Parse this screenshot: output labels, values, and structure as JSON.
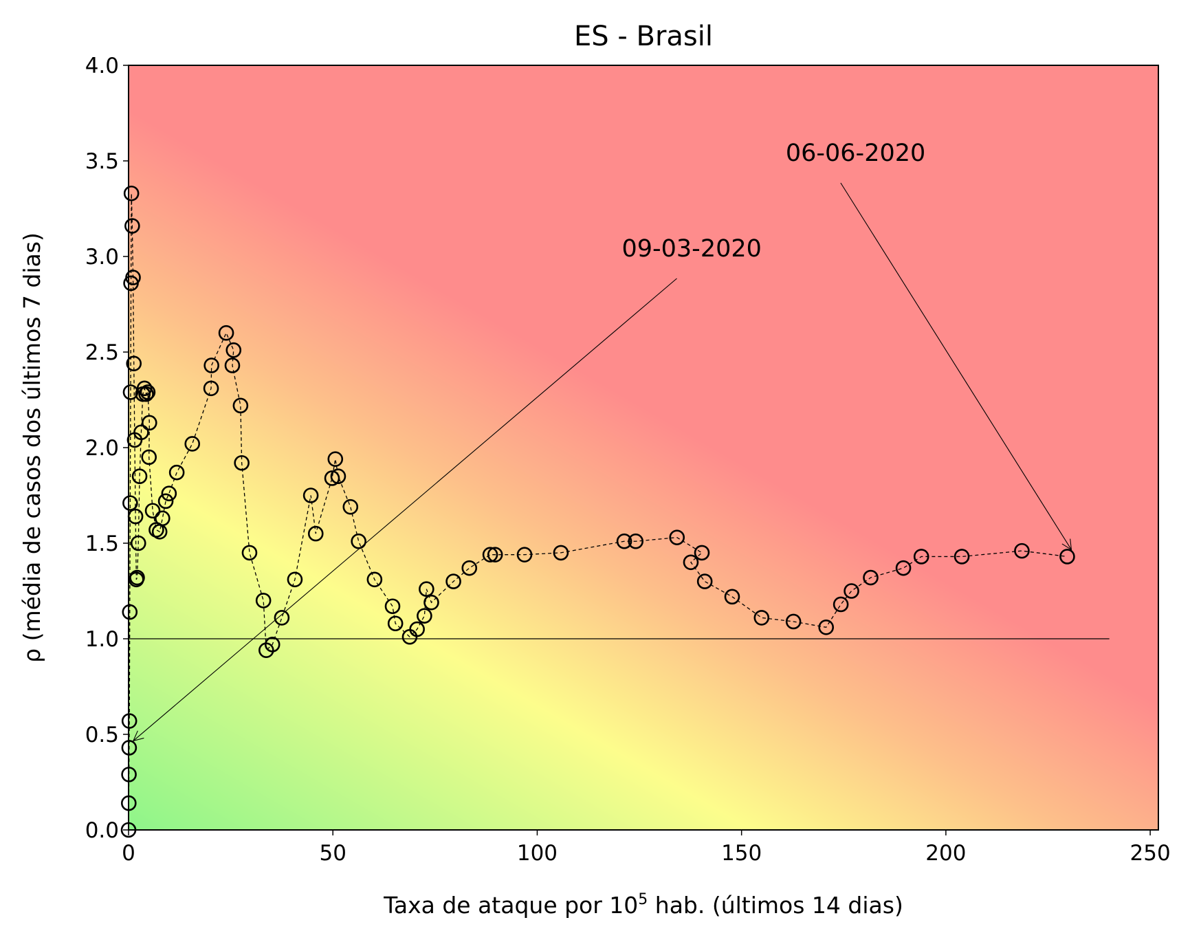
{
  "chart_data": {
    "type": "scatter",
    "title": "ES - Brasil",
    "xlabel": "Taxa de ataque por 10",
    "xlabel_sup": "5",
    "xlabel_suffix": " hab. (últimos 14 dias)",
    "ylabel": "ρ (média de casos dos últimos 7 dias)",
    "xlim": [
      0,
      252
    ],
    "ylim": [
      0,
      4
    ],
    "xticks": [
      0,
      50,
      100,
      150,
      200,
      250
    ],
    "xtick_labels": [
      "0",
      "50",
      "100",
      "150",
      "200",
      "250"
    ],
    "yticks": [
      0,
      0.5,
      1,
      1.5,
      2,
      2.5,
      3,
      3.5,
      4
    ],
    "ytick_labels": [
      "0.0",
      "0.5",
      "1.0",
      "1.5",
      "2.0",
      "2.5",
      "3.0",
      "3.5",
      "4.0"
    ],
    "grid": false,
    "background": "risk gradient green to yellow to red",
    "colors": {
      "green": "#8ef58a",
      "yellow": "#fdfd8c",
      "orange": "#fdc08a",
      "red": "#fe8c8c",
      "marker_edge": "#000000"
    },
    "reference_line": {
      "y": 1.0,
      "x_range": [
        0,
        240
      ]
    },
    "series": [
      {
        "marker": "open circle",
        "line": "dashed",
        "points": [
          [
            0.0,
            0.0
          ],
          [
            0.05,
            0.14
          ],
          [
            0.1,
            0.29
          ],
          [
            0.15,
            0.43
          ],
          [
            0.2,
            0.57
          ],
          [
            0.3,
            1.14
          ],
          [
            0.4,
            1.71
          ],
          [
            0.5,
            2.29
          ],
          [
            0.6,
            2.86
          ],
          [
            0.7,
            3.33
          ],
          [
            0.9,
            3.16
          ],
          [
            1.1,
            2.89
          ],
          [
            1.3,
            2.44
          ],
          [
            1.5,
            2.04
          ],
          [
            1.7,
            1.64
          ],
          [
            1.9,
            1.31
          ],
          [
            2.1,
            1.32
          ],
          [
            2.4,
            1.5
          ],
          [
            2.7,
            1.85
          ],
          [
            3.1,
            2.08
          ],
          [
            3.5,
            2.28
          ],
          [
            3.9,
            2.31
          ],
          [
            4.3,
            2.28
          ],
          [
            4.7,
            2.29
          ],
          [
            5.1,
            2.13
          ],
          [
            5.0,
            1.95
          ],
          [
            5.9,
            1.67
          ],
          [
            6.8,
            1.57
          ],
          [
            7.6,
            1.56
          ],
          [
            8.3,
            1.63
          ],
          [
            9.1,
            1.72
          ],
          [
            9.9,
            1.76
          ],
          [
            11.8,
            1.87
          ],
          [
            15.6,
            2.02
          ],
          [
            20.2,
            2.31
          ],
          [
            20.3,
            2.43
          ],
          [
            23.9,
            2.6
          ],
          [
            25.7,
            2.51
          ],
          [
            25.4,
            2.43
          ],
          [
            27.4,
            2.22
          ],
          [
            27.7,
            1.92
          ],
          [
            29.6,
            1.45
          ],
          [
            33.0,
            1.2
          ],
          [
            33.7,
            0.94
          ],
          [
            35.2,
            0.97
          ],
          [
            37.5,
            1.11
          ],
          [
            40.7,
            1.31
          ],
          [
            44.6,
            1.75
          ],
          [
            45.8,
            1.55
          ],
          [
            49.8,
            1.84
          ],
          [
            50.6,
            1.94
          ],
          [
            51.3,
            1.85
          ],
          [
            54.3,
            1.69
          ],
          [
            56.3,
            1.51
          ],
          [
            60.2,
            1.31
          ],
          [
            64.6,
            1.17
          ],
          [
            65.3,
            1.08
          ],
          [
            68.8,
            1.01
          ],
          [
            70.6,
            1.05
          ],
          [
            72.4,
            1.12
          ],
          [
            72.9,
            1.26
          ],
          [
            74.1,
            1.19
          ],
          [
            79.5,
            1.3
          ],
          [
            83.4,
            1.37
          ],
          [
            88.5,
            1.44
          ],
          [
            89.7,
            1.44
          ],
          [
            96.9,
            1.44
          ],
          [
            105.8,
            1.45
          ],
          [
            121.3,
            1.51
          ],
          [
            124.1,
            1.51
          ],
          [
            134.2,
            1.53
          ],
          [
            140.3,
            1.45
          ],
          [
            137.6,
            1.4
          ],
          [
            141.0,
            1.3
          ],
          [
            147.7,
            1.22
          ],
          [
            154.9,
            1.11
          ],
          [
            162.7,
            1.09
          ],
          [
            170.7,
            1.06
          ],
          [
            174.3,
            1.18
          ],
          [
            176.9,
            1.25
          ],
          [
            181.6,
            1.32
          ],
          [
            189.6,
            1.37
          ],
          [
            194.0,
            1.43
          ],
          [
            203.9,
            1.43
          ],
          [
            218.6,
            1.46
          ],
          [
            229.7,
            1.43
          ]
        ]
      }
    ],
    "annotations": [
      {
        "text": "09-03-2020",
        "point": [
          0.15,
          0.43
        ],
        "text_pos": [
          120.7,
          3.0
        ]
      },
      {
        "text": "06-06-2020",
        "point": [
          229.7,
          1.43
        ],
        "text_pos": [
          160.8,
          3.5
        ]
      }
    ]
  }
}
